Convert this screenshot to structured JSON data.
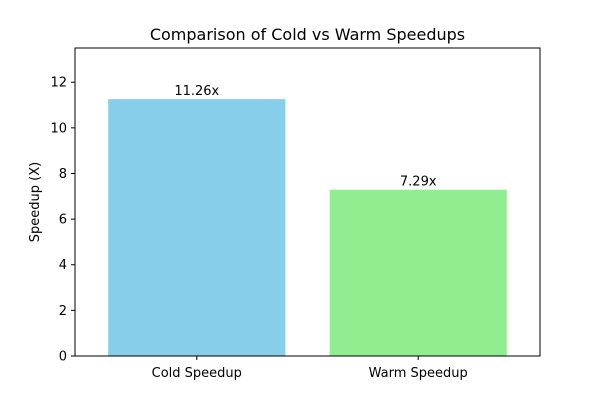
{
  "chart_data": {
    "type": "bar",
    "title": "Comparison of Cold vs Warm Speedups",
    "xlabel": "",
    "ylabel": "Speedup (X)",
    "categories": [
      "Cold Speedup",
      "Warm Speedup"
    ],
    "values": [
      11.26,
      7.29
    ],
    "data_labels": [
      "11.26x",
      "7.29x"
    ],
    "bar_colors": [
      "#87ceeb",
      "#90ee90"
    ],
    "ylim": [
      0,
      13.5
    ],
    "yticks": [
      0,
      2,
      4,
      6,
      8,
      10,
      12
    ],
    "grid": false,
    "legend": "none"
  }
}
